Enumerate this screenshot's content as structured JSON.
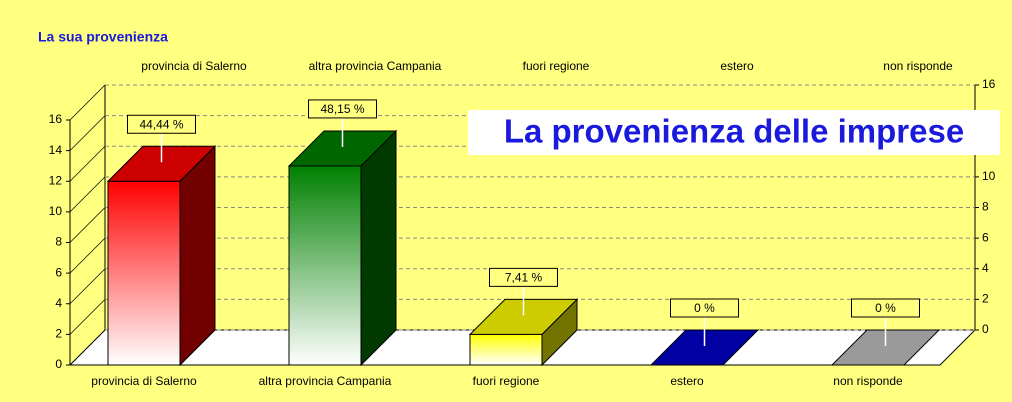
{
  "chart_data": {
    "type": "bar3d",
    "title": "La sua provenienza",
    "annotation": "La provenienza delle imprese",
    "categories": [
      "provincia di Salerno",
      "altra provincia Campania",
      "fuori regione",
      "estero",
      "non risponde"
    ],
    "values": [
      12,
      13,
      2,
      0,
      0
    ],
    "data_labels": [
      "44,44 %",
      "48,15 %",
      "7,41 %",
      "0 %",
      "0 %"
    ],
    "colors": [
      "#ff0000",
      "#008000",
      "#ffff00",
      "#0000cc",
      "#c0c0c0"
    ],
    "ylim": [
      0,
      16
    ],
    "yticks": [
      0,
      2,
      4,
      6,
      8,
      10,
      12,
      14,
      16
    ],
    "grid": true
  }
}
